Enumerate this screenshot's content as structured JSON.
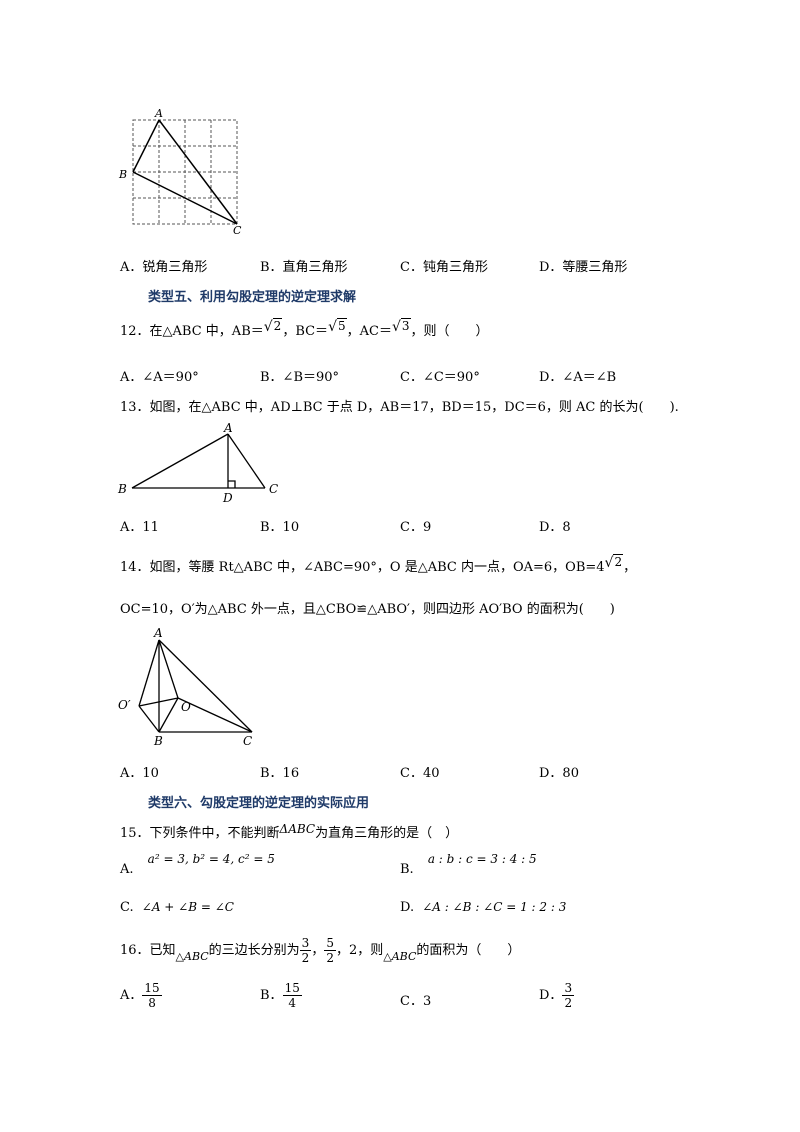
{
  "q11": {
    "figure_labels": {
      "A": "A",
      "B": "B",
      "C": "C"
    },
    "options": [
      "A．锐角三角形",
      "B．直角三角形",
      "C．钝角三角形",
      "D．等腰三角形"
    ]
  },
  "section5": "类型五、利用勾股定理的逆定理求解",
  "q12": {
    "prefix": "12．在△ABC 中，AB＝",
    "r1": "2",
    "mid1": "，BC＝",
    "r2": "5",
    "mid2": "，AC＝",
    "r3": "3",
    "suffix": "，则（　　）",
    "options": [
      "A．∠A＝90°",
      "B．∠B＝90°",
      "C．∠C＝90°",
      "D．∠A＝∠B"
    ]
  },
  "q13": {
    "text": "13．如图，在△ABC 中，AD⊥BC 于点 D，AB＝17，BD＝15，DC＝6，则 AC 的长为(　　).",
    "figure_labels": {
      "A": "A",
      "B": "B",
      "C": "C",
      "D": "D"
    },
    "options": [
      "A．11",
      "B．10",
      "C．9",
      "D．8"
    ]
  },
  "q14": {
    "line1_prefix": "14．如图，等腰 Rt△ABC 中，∠ABC=90°，O 是△ABC 内一点，OA=6，OB=4",
    "line1_root": "2",
    "line1_suffix": "，",
    "line2": "OC=10，O′为△ABC 外一点，且△CBO≌△ABO′，则四边形 AO′BO 的面积为(　　)",
    "figure_labels": {
      "A": "A",
      "B": "B",
      "C": "C",
      "O": "O",
      "O1": "O′"
    },
    "options": [
      "A．10",
      "B．16",
      "C．40",
      "D．80"
    ]
  },
  "section6": "类型六、勾股定理的逆定理的实际应用",
  "q15": {
    "prefix": "15．下列条件中，不能判断",
    "tri": "ΔABC",
    "suffix": "为直角三角形的是（　）",
    "optA_label": "A.",
    "optA_math": "a² = 3, b² = 4, c² = 5",
    "optB_label": "B.",
    "optB_math": "a : b : c = 3 : 4 : 5",
    "optC_label": "C.",
    "optC_math": "∠A + ∠B = ∠C",
    "optD_label": "D.",
    "optD_math": "∠A : ∠B : ∠C = 1 : 2 : 3"
  },
  "q16": {
    "prefix": "16．已知",
    "tri": "△ABC",
    "mid": "的三边长分别为",
    "f1_num": "3",
    "f1_den": "2",
    "sep1": "，",
    "f2_num": "5",
    "f2_den": "2",
    "sep2": "，2，则",
    "tri2": "△ABC",
    "suffix": "的面积为（　　）",
    "optA_label": "A．",
    "optA_num": "15",
    "optA_den": "8",
    "optB_label": "B．",
    "optB_num": "15",
    "optB_den": "4",
    "optC": "C．3",
    "optD_label": "D．",
    "optD_num": "3",
    "optD_den": "2"
  }
}
